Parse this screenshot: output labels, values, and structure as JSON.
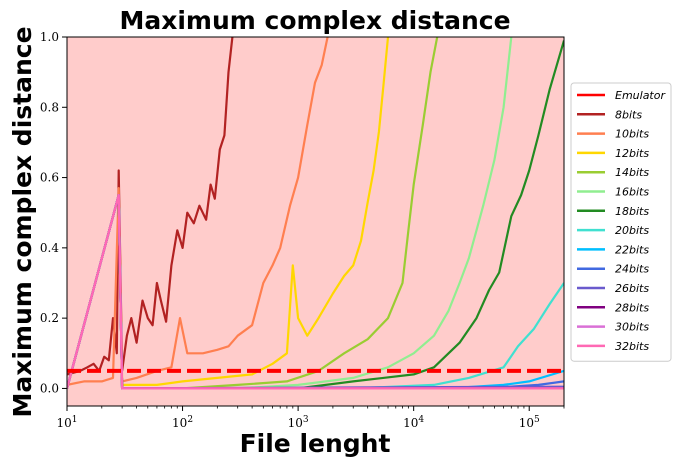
{
  "chart_data": {
    "type": "line",
    "title": "Maximum complex distance",
    "xlabel": "File lenght",
    "ylabel": "Maximum complex distance",
    "xscale": "log",
    "xlim": [
      10,
      200000
    ],
    "ylim": [
      -0.05,
      1.0
    ],
    "x_ticks": [
      {
        "value": 10,
        "base": "10",
        "exp": "1"
      },
      {
        "value": 100,
        "base": "10",
        "exp": "2"
      },
      {
        "value": 1000,
        "base": "10",
        "exp": "3"
      },
      {
        "value": 10000,
        "base": "10",
        "exp": "4"
      },
      {
        "value": 100000,
        "base": "10",
        "exp": "5"
      }
    ],
    "y_ticks": [
      "0.0",
      "0.2",
      "0.4",
      "0.6",
      "0.8",
      "1.0"
    ],
    "background_fill": "#ffcccb",
    "threshold": {
      "value": 0.05,
      "color": "#ff0000",
      "style": "dashed"
    },
    "legend_position": "right",
    "series": [
      {
        "name": "Emulator",
        "color": "#ff0000",
        "points": []
      },
      {
        "name": "8bits",
        "color": "#b22222",
        "points": [
          [
            10,
            0.04
          ],
          [
            13,
            0.05
          ],
          [
            15,
            0.06
          ],
          [
            17,
            0.07
          ],
          [
            19,
            0.05
          ],
          [
            21,
            0.09
          ],
          [
            23,
            0.08
          ],
          [
            25,
            0.2
          ],
          [
            27,
            0.1
          ],
          [
            28,
            0.62
          ],
          [
            30,
            0.05
          ],
          [
            33,
            0.15
          ],
          [
            36,
            0.2
          ],
          [
            40,
            0.13
          ],
          [
            45,
            0.25
          ],
          [
            50,
            0.2
          ],
          [
            55,
            0.18
          ],
          [
            60,
            0.3
          ],
          [
            65,
            0.25
          ],
          [
            72,
            0.19
          ],
          [
            80,
            0.35
          ],
          [
            90,
            0.45
          ],
          [
            100,
            0.4
          ],
          [
            110,
            0.5
          ],
          [
            125,
            0.47
          ],
          [
            140,
            0.52
          ],
          [
            160,
            0.48
          ],
          [
            175,
            0.58
          ],
          [
            190,
            0.54
          ],
          [
            210,
            0.68
          ],
          [
            230,
            0.72
          ],
          [
            250,
            0.9
          ],
          [
            270,
            1.0
          ]
        ]
      },
      {
        "name": "10bits",
        "color": "#ff7f50",
        "points": [
          [
            10,
            0.01
          ],
          [
            14,
            0.02
          ],
          [
            20,
            0.02
          ],
          [
            25,
            0.03
          ],
          [
            28,
            0.57
          ],
          [
            30,
            0.02
          ],
          [
            40,
            0.03
          ],
          [
            60,
            0.05
          ],
          [
            80,
            0.06
          ],
          [
            95,
            0.2
          ],
          [
            110,
            0.1
          ],
          [
            150,
            0.1
          ],
          [
            200,
            0.11
          ],
          [
            250,
            0.12
          ],
          [
            300,
            0.15
          ],
          [
            400,
            0.18
          ],
          [
            500,
            0.3
          ],
          [
            600,
            0.35
          ],
          [
            700,
            0.4
          ],
          [
            850,
            0.52
          ],
          [
            1000,
            0.6
          ],
          [
            1200,
            0.75
          ],
          [
            1400,
            0.87
          ],
          [
            1600,
            0.92
          ],
          [
            1800,
            1.0
          ]
        ]
      },
      {
        "name": "12bits",
        "color": "#ffd700",
        "points": [
          [
            10,
            0.0
          ],
          [
            28,
            0.55
          ],
          [
            30,
            0.01
          ],
          [
            60,
            0.01
          ],
          [
            100,
            0.02
          ],
          [
            200,
            0.03
          ],
          [
            400,
            0.04
          ],
          [
            600,
            0.07
          ],
          [
            800,
            0.1
          ],
          [
            900,
            0.35
          ],
          [
            1000,
            0.2
          ],
          [
            1200,
            0.15
          ],
          [
            1500,
            0.2
          ],
          [
            2000,
            0.27
          ],
          [
            2500,
            0.32
          ],
          [
            3000,
            0.35
          ],
          [
            3500,
            0.42
          ],
          [
            4000,
            0.53
          ],
          [
            4500,
            0.62
          ],
          [
            5000,
            0.73
          ],
          [
            5500,
            0.87
          ],
          [
            6000,
            1.0
          ]
        ]
      },
      {
        "name": "14bits",
        "color": "#9acd32",
        "points": [
          [
            10,
            0.0
          ],
          [
            28,
            0.55
          ],
          [
            30,
            0.0
          ],
          [
            100,
            0.0
          ],
          [
            300,
            0.01
          ],
          [
            800,
            0.02
          ],
          [
            1500,
            0.05
          ],
          [
            2500,
            0.1
          ],
          [
            4000,
            0.14
          ],
          [
            6000,
            0.2
          ],
          [
            8000,
            0.3
          ],
          [
            9000,
            0.45
          ],
          [
            10000,
            0.58
          ],
          [
            12000,
            0.75
          ],
          [
            14000,
            0.9
          ],
          [
            16000,
            1.0
          ]
        ]
      },
      {
        "name": "16bits",
        "color": "#90ee90",
        "points": [
          [
            10,
            0.0
          ],
          [
            28,
            0.55
          ],
          [
            30,
            0.0
          ],
          [
            300,
            0.0
          ],
          [
            1000,
            0.01
          ],
          [
            3000,
            0.03
          ],
          [
            6000,
            0.06
          ],
          [
            10000,
            0.1
          ],
          [
            15000,
            0.15
          ],
          [
            20000,
            0.22
          ],
          [
            25000,
            0.3
          ],
          [
            30000,
            0.37
          ],
          [
            35000,
            0.45
          ],
          [
            40000,
            0.52
          ],
          [
            50000,
            0.65
          ],
          [
            60000,
            0.8
          ],
          [
            70000,
            1.0
          ]
        ]
      },
      {
        "name": "18bits",
        "color": "#228b22",
        "points": [
          [
            10,
            0.0
          ],
          [
            28,
            0.55
          ],
          [
            30,
            0.0
          ],
          [
            1000,
            0.0
          ],
          [
            3000,
            0.02
          ],
          [
            10000,
            0.04
          ],
          [
            15000,
            0.06
          ],
          [
            25000,
            0.13
          ],
          [
            35000,
            0.2
          ],
          [
            45000,
            0.28
          ],
          [
            55000,
            0.33
          ],
          [
            70000,
            0.49
          ],
          [
            85000,
            0.55
          ],
          [
            100000,
            0.62
          ],
          [
            120000,
            0.72
          ],
          [
            150000,
            0.85
          ],
          [
            200000,
            0.99
          ]
        ]
      },
      {
        "name": "20bits",
        "color": "#40e0d0",
        "points": [
          [
            10,
            0.0
          ],
          [
            28,
            0.55
          ],
          [
            30,
            0.0
          ],
          [
            3000,
            0.0
          ],
          [
            15000,
            0.01
          ],
          [
            30000,
            0.03
          ],
          [
            60000,
            0.06
          ],
          [
            80000,
            0.12
          ],
          [
            110000,
            0.17
          ],
          [
            150000,
            0.24
          ],
          [
            200000,
            0.3
          ]
        ]
      },
      {
        "name": "22bits",
        "color": "#00bfff",
        "points": [
          [
            10,
            0.0
          ],
          [
            28,
            0.55
          ],
          [
            30,
            0.0
          ],
          [
            20000,
            0.0
          ],
          [
            60000,
            0.01
          ],
          [
            100000,
            0.02
          ],
          [
            200000,
            0.05
          ]
        ]
      },
      {
        "name": "24bits",
        "color": "#4169e1",
        "points": [
          [
            10,
            0.0
          ],
          [
            28,
            0.55
          ],
          [
            30,
            0.0
          ],
          [
            40000,
            0.0
          ],
          [
            120000,
            0.01
          ],
          [
            200000,
            0.02
          ]
        ]
      },
      {
        "name": "26bits",
        "color": "#6a5acd",
        "points": [
          [
            10,
            0.0
          ],
          [
            28,
            0.55
          ],
          [
            30,
            0.0
          ],
          [
            200000,
            0.005
          ]
        ]
      },
      {
        "name": "28bits",
        "color": "#800080",
        "points": [
          [
            10,
            0.0
          ],
          [
            28,
            0.55
          ],
          [
            30,
            0.0
          ],
          [
            200000,
            0.0
          ]
        ]
      },
      {
        "name": "30bits",
        "color": "#da70d6",
        "points": [
          [
            10,
            0.0
          ],
          [
            28,
            0.55
          ],
          [
            30,
            0.0
          ],
          [
            200000,
            0.0
          ]
        ]
      },
      {
        "name": "32bits",
        "color": "#ff69b4",
        "points": [
          [
            10,
            0.0
          ],
          [
            28,
            0.55
          ],
          [
            30,
            0.0
          ],
          [
            200000,
            0.0
          ]
        ]
      }
    ]
  }
}
